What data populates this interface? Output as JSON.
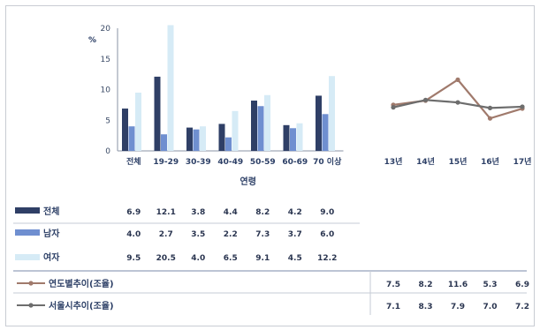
{
  "chart_data": [
    {
      "type": "bar",
      "unit_label": "%",
      "xlabel": "연령",
      "ylim": [
        0,
        20
      ],
      "yticks": [
        "0",
        "5",
        "10",
        "15",
        "20"
      ],
      "categories": [
        "전체",
        "19-29",
        "30-39",
        "40-49",
        "50-59",
        "60-69",
        "70 이상"
      ],
      "series": [
        {
          "name": "전체",
          "color": "#2f3f66",
          "values": [
            6.9,
            12.1,
            3.8,
            4.4,
            8.2,
            4.2,
            9.0
          ]
        },
        {
          "name": "남자",
          "color": "#6f8fd0",
          "values": [
            4.0,
            2.7,
            3.5,
            2.2,
            7.3,
            3.7,
            6.0
          ]
        },
        {
          "name": "여자",
          "color": "#d6ebf6",
          "values": [
            9.5,
            20.5,
            4.0,
            6.5,
            9.1,
            4.5,
            12.2
          ]
        }
      ]
    },
    {
      "type": "line",
      "categories": [
        "13년",
        "14년",
        "15년",
        "16년",
        "17년"
      ],
      "ylim": [
        0,
        20
      ],
      "series": [
        {
          "name": "연도별추이(조율)",
          "color": "#a07a6c",
          "values": [
            7.5,
            8.2,
            11.6,
            5.3,
            6.9
          ]
        },
        {
          "name": "서울시추이(조율)",
          "color": "#6d6d6d",
          "values": [
            7.1,
            8.3,
            7.9,
            7.0,
            7.2
          ]
        }
      ]
    }
  ]
}
